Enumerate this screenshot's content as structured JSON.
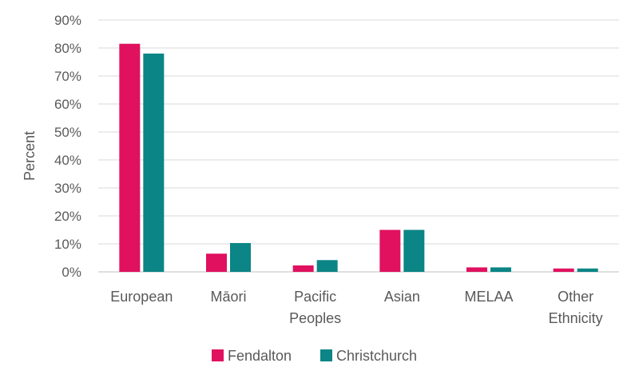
{
  "chart_data": {
    "type": "bar",
    "title": "",
    "xlabel": "",
    "ylabel": "Percent",
    "ylim": [
      0,
      90
    ],
    "y_ticks": [
      "0%",
      "10%",
      "20%",
      "30%",
      "40%",
      "50%",
      "60%",
      "70%",
      "80%",
      "90%"
    ],
    "y_tick_values": [
      0,
      10,
      20,
      30,
      40,
      50,
      60,
      70,
      80,
      90
    ],
    "categories": [
      [
        "European"
      ],
      [
        "Māori"
      ],
      [
        "Pacific",
        "Peoples"
      ],
      [
        "Asian"
      ],
      [
        "MELAA"
      ],
      [
        "Other",
        "Ethnicity"
      ]
    ],
    "series": [
      {
        "name": "Fendalton",
        "color": "#e0115f",
        "values": [
          81.5,
          6.5,
          2.3,
          15.0,
          1.6,
          1.2
        ]
      },
      {
        "name": "Christchurch",
        "color": "#0b8585",
        "values": [
          78.0,
          10.3,
          4.2,
          15.0,
          1.6,
          1.2
        ]
      }
    ],
    "grid": true,
    "legend_position": "bottom"
  }
}
